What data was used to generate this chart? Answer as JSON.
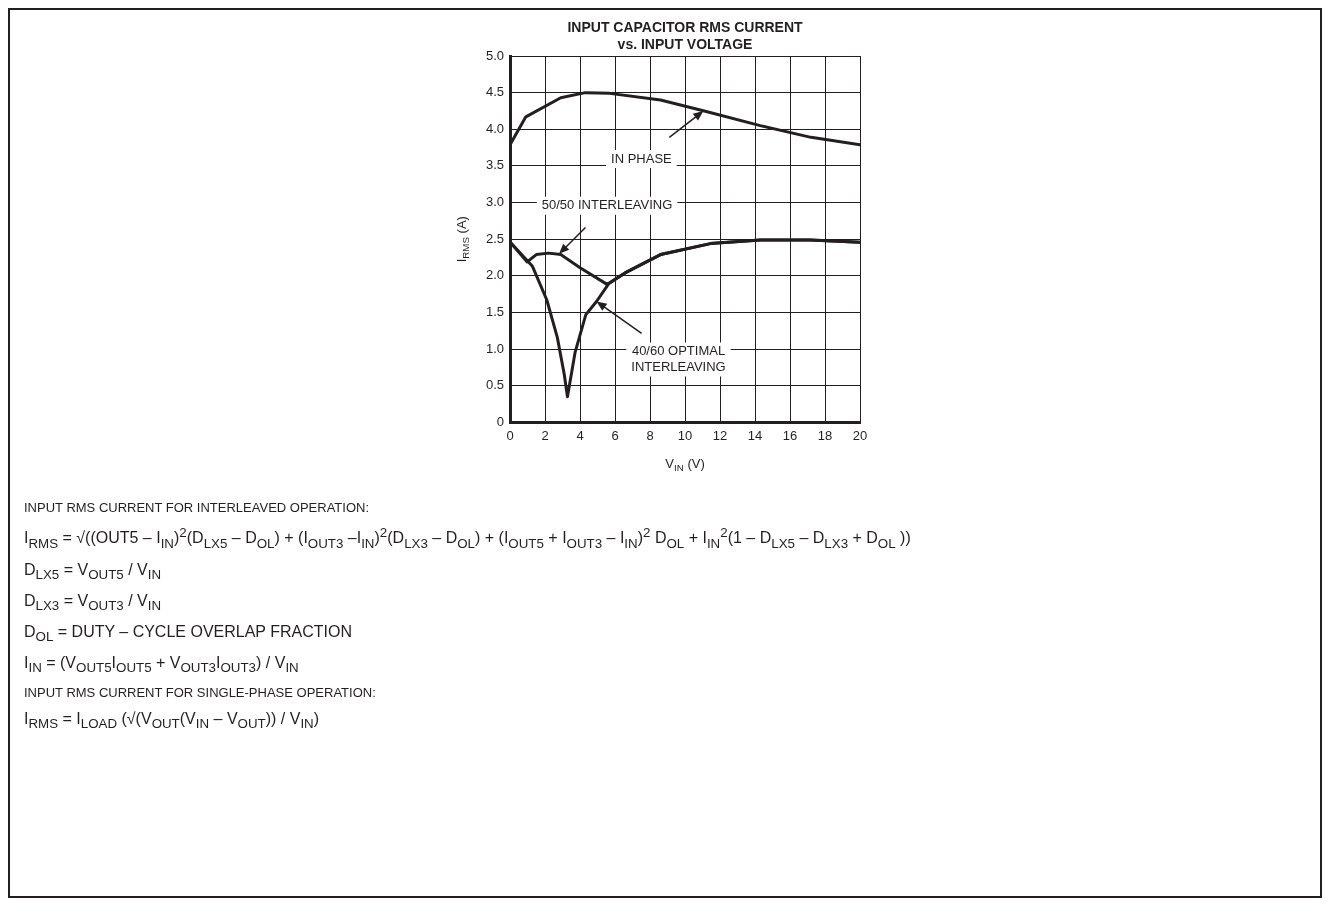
{
  "chart_data": {
    "type": "line",
    "title": "INPUT CAPACITOR RMS CURRENT\nvs. INPUT VOLTAGE",
    "xlabel": "V$_{IN}$ (V)",
    "ylabel": "I$_{RMS}$ (A)",
    "xlim": [
      0,
      20
    ],
    "xticks": [
      0,
      2,
      4,
      6,
      8,
      10,
      12,
      14,
      16,
      18,
      20
    ],
    "ylim": [
      0,
      5
    ],
    "yticks": [
      0,
      0.5,
      {
        "value": 1,
        "label": "1.0"
      },
      1.5,
      {
        "value": 2,
        "label": "2.0"
      },
      2.5,
      {
        "value": 3,
        "label": "3.0"
      },
      3.5,
      {
        "value": 4,
        "label": "4.0"
      },
      4.5,
      {
        "value": 5,
        "label": "5.0"
      }
    ],
    "grid": true,
    "line_style": "solid",
    "series": [
      {
        "color": "#231f20",
        "x": [
          0,
          0.9,
          2.9,
          4.3,
          5.7,
          8.6,
          11.1,
          14.3,
          17.2,
          20
        ],
        "values": [
          3.79,
          4.17,
          4.43,
          4.5,
          4.49,
          4.4,
          4.25,
          4.05,
          3.89,
          3.79
        ]
      },
      {
        "color": "#231f20",
        "x": [
          0,
          0.98,
          1.5,
          2.2,
          2.9,
          4.0,
          5.5,
          5.66,
          6.57,
          8.6,
          11.45,
          14.3,
          17.15,
          20
        ],
        "values": [
          2.46,
          2.19,
          2.29,
          2.31,
          2.29,
          2.11,
          1.89,
          1.9,
          2.04,
          2.29,
          2.44,
          2.49,
          2.49,
          2.46
        ]
      },
      {
        "color": "#231f20",
        "x": [
          0,
          1.28,
          2.1,
          2.7,
          3.1,
          3.28,
          3.72,
          4.33,
          4.94,
          5.66,
          6.57,
          8.6,
          11.45,
          14.3,
          17.15,
          20
        ],
        "values": [
          2.46,
          2.13,
          1.67,
          1.16,
          0.65,
          0.35,
          0.96,
          1.47,
          1.65,
          1.9,
          2.04,
          2.29,
          2.44,
          2.49,
          2.49,
          2.46
        ]
      }
    ],
    "annotations": [
      {
        "text": "IN PHASE",
        "x": 11.05,
        "y": 4.25
      },
      {
        "text": "50/50 INTERLEAVING",
        "x": 2.8,
        "y": 2.3
      },
      {
        "text": "40/60 OPTIMAL\nINTERLEAVING",
        "x": 4.94,
        "y": 1.65
      },
      "INPUT RMS CURRENT FOR INTERLEAVED OPERATION:",
      "I$_{RMS}$ = √((OUT5 – I$_{IN}$)$^{2}$(D$_{LX5}$ – D$_{OL}$) + (I$_{OUT3}$ –I$_{IN}$)$^{2}$(D$_{LX3}$ – D$_{OL}$) + (I$_{OUT5}$ + I$_{OUT3}$ – I$_{IN}$)$^{2}$ D$_{OL}$ + I$_{IN}$$^{2}$(1 – D$_{LX5}$ – D$_{LX3}$ + D$_{OL}$ ))",
      "D$_{LX5}$ = V$_{OUT5}$ / V$_{IN}$",
      "D$_{LX3}$ = V$_{OUT3}$ / V$_{IN}$",
      "D$_{OL}$ = DUTY – CYCLE OVERLAP FRACTION",
      "I$_{IN}$ = (V$_{OUT5}$I$_{OUT5}$ + V$_{OUT3}$I$_{OUT3}$) / V$_{IN}$",
      "INPUT RMS CURRENT FOR SINGLE-PHASE OPERATION:",
      "I$_{RMS}$ = I$_{LOAD}$ (√(V$_{OUT}$(V$_{IN}$ – V$_{OUT}$)) / V$_{IN}$)"
    ]
  }
}
